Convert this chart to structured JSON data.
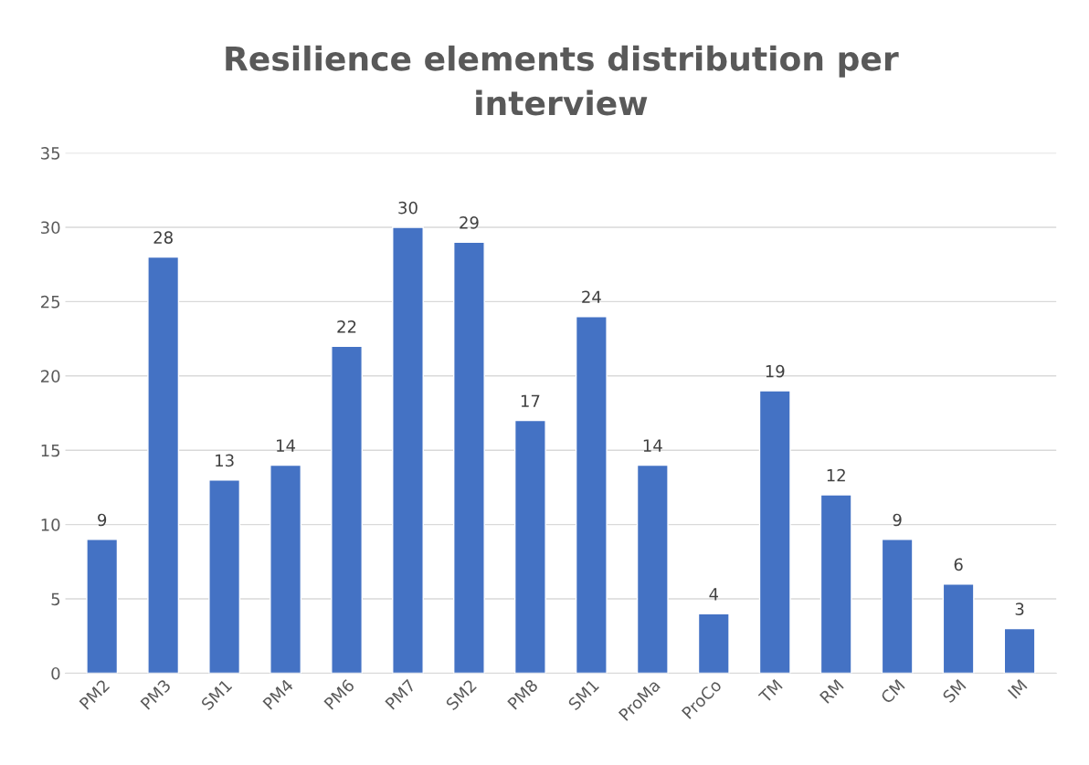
{
  "chart_data": {
    "type": "bar",
    "title": "Resilience elements distribution per\ninterview",
    "categories": [
      "PM2",
      "PM3",
      "SM1",
      "PM4",
      "PM6",
      "PM7",
      "SM2",
      "PM8",
      "SM1",
      "ProMa",
      "ProCo",
      "TM",
      "RM",
      "CM",
      "SM",
      "IM"
    ],
    "values": [
      9,
      28,
      13,
      14,
      22,
      30,
      29,
      17,
      24,
      14,
      4,
      19,
      12,
      9,
      6,
      3
    ],
    "color": "#4472c4",
    "ylim": [
      0,
      35
    ],
    "yticks": [
      0,
      5,
      10,
      15,
      20,
      25,
      30,
      35
    ],
    "grid": "y",
    "data_labels": true
  }
}
